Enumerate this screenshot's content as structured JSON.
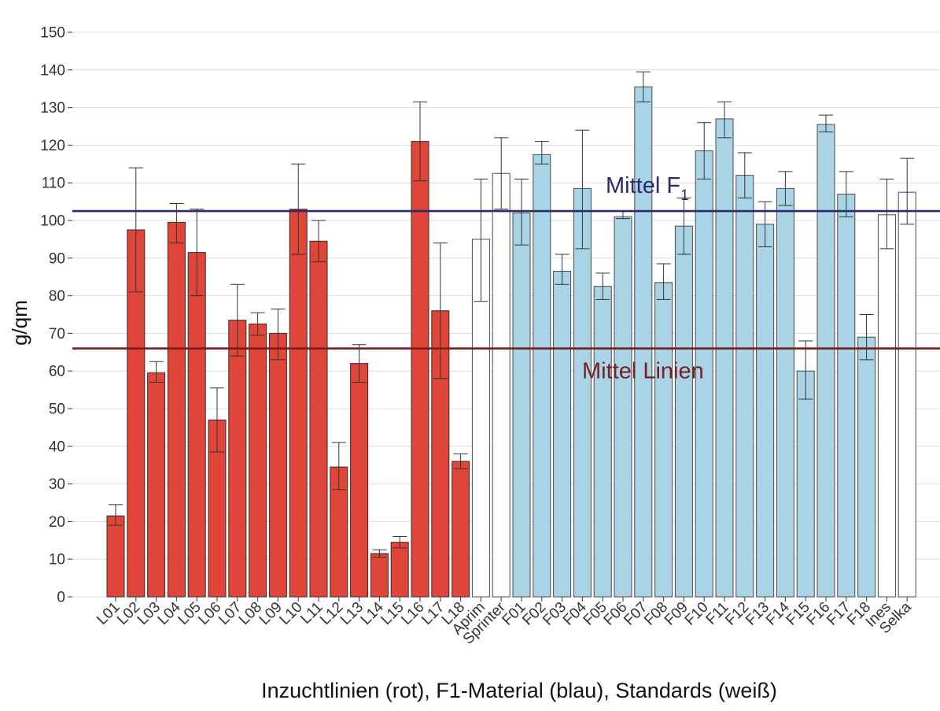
{
  "chart_data": {
    "type": "bar",
    "ylabel": "g/qm",
    "xlabel": "Inzuchtlinien (rot), F1-Material (blau), Standards (weiß)",
    "ylim": [
      0,
      150
    ],
    "yticks": [
      0,
      10,
      20,
      30,
      40,
      50,
      60,
      70,
      80,
      90,
      100,
      110,
      120,
      130,
      140,
      150
    ],
    "grid": true,
    "colors": {
      "inbred": "#e0453a",
      "f1": "#a8d4e6",
      "standard": "#ffffff",
      "mean_f1": "#2e2a6e",
      "mean_lines": "#7a1e22",
      "grid": "#dcdcdc"
    },
    "categories": [
      "L01",
      "L02",
      "L03",
      "L04",
      "L05",
      "L06",
      "L07",
      "L08",
      "L09",
      "L10",
      "L11",
      "L12",
      "L13",
      "L14",
      "L15",
      "L16",
      "L17",
      "L18",
      "Aprim",
      "Sprinter",
      "F01",
      "F02",
      "F03",
      "F04",
      "F05",
      "F06",
      "F07",
      "F08",
      "F09",
      "F10",
      "F11",
      "F12",
      "F13",
      "F14",
      "F15",
      "F16",
      "F17",
      "F18",
      "Ines",
      "Selka"
    ],
    "groups": [
      "inbred",
      "inbred",
      "inbred",
      "inbred",
      "inbred",
      "inbred",
      "inbred",
      "inbred",
      "inbred",
      "inbred",
      "inbred",
      "inbred",
      "inbred",
      "inbred",
      "inbred",
      "inbred",
      "inbred",
      "inbred",
      "standard",
      "standard",
      "f1",
      "f1",
      "f1",
      "f1",
      "f1",
      "f1",
      "f1",
      "f1",
      "f1",
      "f1",
      "f1",
      "f1",
      "f1",
      "f1",
      "f1",
      "f1",
      "f1",
      "f1",
      "standard",
      "standard"
    ],
    "values": [
      21.5,
      97.5,
      59.5,
      99.5,
      91.5,
      47,
      73.5,
      72.5,
      70,
      103,
      94.5,
      34.5,
      62,
      11.5,
      14.5,
      121,
      76,
      36,
      95,
      112.5,
      102,
      117.5,
      86.5,
      108.5,
      82.5,
      101,
      135.5,
      83.5,
      98.5,
      118.5,
      127,
      112,
      99,
      108.5,
      60,
      125.5,
      107,
      69,
      101.5,
      107.5
    ],
    "error_low": [
      19,
      81,
      57,
      94,
      80,
      38.5,
      64,
      69.5,
      63,
      91,
      89,
      28.5,
      57,
      10.5,
      13,
      110.5,
      58,
      34,
      78.5,
      103,
      93.5,
      115,
      83,
      92.5,
      79,
      100.5,
      131.5,
      79,
      91,
      111,
      122,
      106,
      93,
      104,
      52.5,
      123.5,
      101,
      63,
      92.5,
      99
    ],
    "error_high": [
      24.5,
      114,
      62.5,
      104.5,
      103,
      55.5,
      83,
      75.5,
      76.5,
      115,
      100,
      41,
      67,
      12.5,
      16,
      131.5,
      94,
      38,
      111,
      122,
      111,
      121,
      91,
      124,
      86,
      102.5,
      139.5,
      88.5,
      106,
      126,
      131.5,
      118,
      105,
      113,
      68,
      128,
      113,
      75,
      111,
      116.5
    ],
    "mean_lines": [
      {
        "label": "Mittel F",
        "subscript": "1",
        "value": 102.5
      },
      {
        "label": "Mittel Linien",
        "subscript": "",
        "value": 66
      }
    ]
  }
}
